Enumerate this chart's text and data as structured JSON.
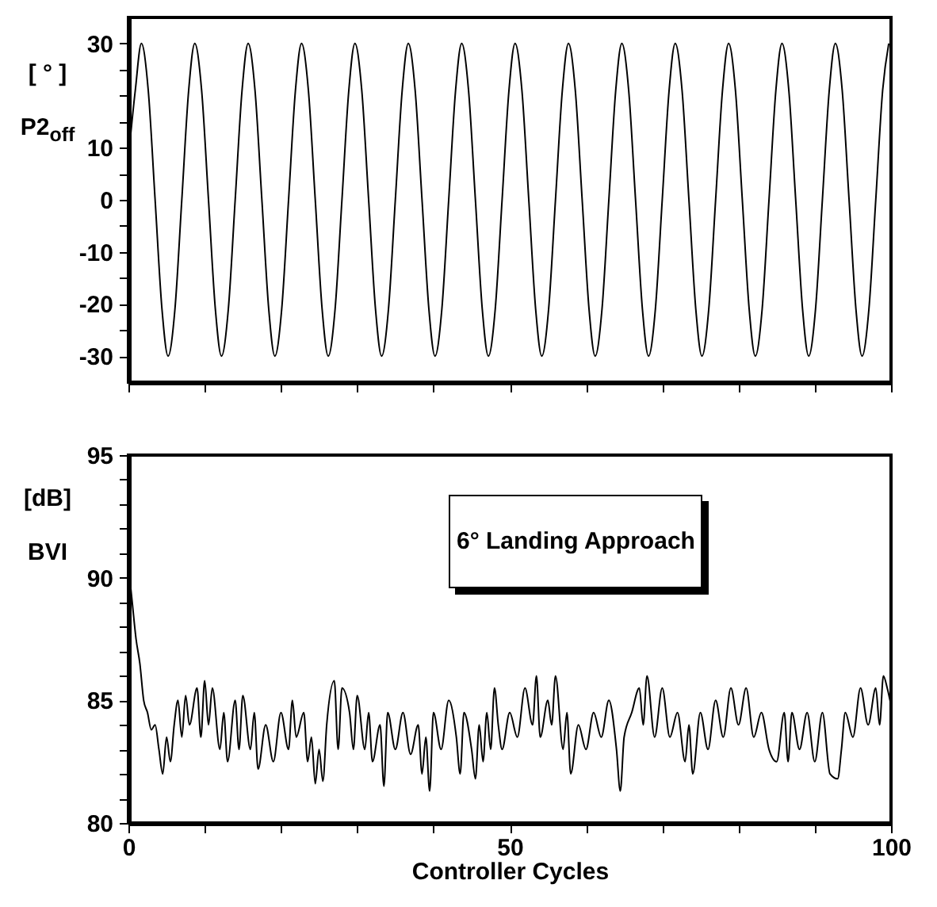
{
  "chart_data": [
    {
      "type": "line",
      "ylabel": "[ ° ] P2$_{off}$",
      "xlim": [
        0,
        100
      ],
      "ylim": [
        -35,
        35
      ],
      "tick_labels": "y",
      "grid": false,
      "marker": "none",
      "line_style": "solid",
      "xticks": [
        {
          "value": 0,
          "label": null
        },
        {
          "value": 10,
          "label": null
        },
        {
          "value": 20,
          "label": null
        },
        {
          "value": 30,
          "label": null
        },
        {
          "value": 40,
          "label": null
        },
        {
          "value": 50,
          "label": null
        },
        {
          "value": 60,
          "label": null
        },
        {
          "value": 70,
          "label": null
        },
        {
          "value": 80,
          "label": null
        },
        {
          "value": 90,
          "label": null
        },
        {
          "value": 100,
          "label": null
        }
      ],
      "yticks": [
        -30,
        {
          "value": -25,
          "label": null
        },
        -20,
        {
          "value": -15,
          "label": null
        },
        -10,
        {
          "value": -5,
          "label": null
        },
        0,
        {
          "value": 5,
          "label": null
        },
        10,
        {
          "value": 15,
          "label": null
        },
        {
          "value": 20,
          "label": null
        },
        {
          "value": 25,
          "label": null
        },
        30
      ],
      "x": [
        0,
        0.9,
        1.7,
        2.6,
        3.5,
        4.4,
        5.2,
        6.1,
        7.0,
        7.9,
        8.7,
        9.6,
        10.5,
        11.4,
        12.2,
        13.1,
        14.0,
        14.9,
        15.7,
        16.6,
        17.5,
        18.4,
        19.2,
        20.1,
        21.0,
        21.9,
        22.7,
        23.6,
        24.5,
        25.4,
        26.2,
        27.1,
        28.0,
        28.9,
        29.7,
        30.6,
        31.5,
        32.4,
        33.2,
        34.1,
        35.0,
        35.9,
        36.7,
        37.6,
        38.5,
        39.4,
        40.2,
        41.1,
        42.0,
        42.9,
        43.7,
        44.6,
        45.5,
        46.4,
        47.2,
        48.1,
        49.0,
        49.9,
        50.7,
        51.6,
        52.5,
        53.4,
        54.2,
        55.1,
        56.0,
        56.9,
        57.7,
        58.6,
        59.5,
        60.4,
        61.2,
        62.1,
        63.0,
        63.9,
        64.7,
        65.6,
        66.5,
        67.4,
        68.2,
        69.1,
        70.0,
        70.9,
        71.7,
        72.6,
        73.5,
        74.4,
        75.2,
        76.1,
        77.0,
        77.9,
        78.7,
        79.6,
        80.5,
        81.4,
        82.2,
        83.1,
        84.0,
        84.9,
        85.7,
        86.6,
        87.5,
        88.4,
        89.2,
        90.1,
        91.0,
        91.9,
        92.7,
        93.6,
        94.5,
        95.4,
        96.2,
        97.1,
        98.0,
        98.9,
        99.7
      ],
      "series": [
        {
          "color": "#000000",
          "values": [
            8,
            21,
            30,
            21,
            0,
            -21,
            -30,
            -21,
            0,
            21,
            30,
            21,
            0,
            -21,
            -30,
            -21,
            0,
            21,
            30,
            21,
            0,
            -21,
            -30,
            -21,
            0,
            21,
            30,
            21,
            0,
            -21,
            -30,
            -21,
            0,
            21,
            30,
            21,
            0,
            -21,
            -30,
            -21,
            0,
            21,
            30,
            21,
            0,
            -21,
            -30,
            -21,
            0,
            21,
            30,
            21,
            0,
            -21,
            -30,
            -21,
            0,
            21,
            30,
            21,
            0,
            -21,
            -30,
            -21,
            0,
            21,
            30,
            21,
            0,
            -21,
            -30,
            -21,
            0,
            21,
            30,
            21,
            0,
            -21,
            -30,
            -21,
            0,
            21,
            30,
            21,
            0,
            -21,
            -30,
            -21,
            0,
            21,
            30,
            21,
            0,
            -21,
            -30,
            -21,
            0,
            21,
            30,
            21,
            0,
            -21,
            -30,
            -21,
            0,
            21,
            30,
            21,
            0,
            -21,
            -30,
            -21,
            0,
            21,
            30
          ]
        }
      ]
    },
    {
      "type": "line",
      "xlabel": "Controller Cycles",
      "ylabel": "[dB] BVI",
      "xlim": [
        0,
        100
      ],
      "ylim": [
        80,
        95
      ],
      "grid": false,
      "marker": "none",
      "line_style": "solid",
      "annotations": [
        "6° Landing Approach"
      ],
      "xticks": [
        0,
        {
          "value": 10,
          "label": null
        },
        {
          "value": 20,
          "label": null
        },
        {
          "value": 30,
          "label": null
        },
        {
          "value": 40,
          "label": null
        },
        50,
        {
          "value": 60,
          "label": null
        },
        {
          "value": 70,
          "label": null
        },
        {
          "value": 80,
          "label": null
        },
        {
          "value": 90,
          "label": null
        },
        100
      ],
      "yticks": [
        80,
        {
          "value": 81,
          "label": null
        },
        {
          "value": 82,
          "label": null
        },
        {
          "value": 83,
          "label": null
        },
        {
          "value": 84,
          "label": null
        },
        85,
        {
          "value": 86,
          "label": null
        },
        {
          "value": 87,
          "label": null
        },
        {
          "value": 88,
          "label": null
        },
        {
          "value": 89,
          "label": null
        },
        90,
        {
          "value": 91,
          "label": null
        },
        {
          "value": 92,
          "label": null
        },
        {
          "value": 93,
          "label": null
        },
        {
          "value": 94,
          "label": null
        },
        95
      ],
      "x": [
        0,
        0.5,
        1,
        1.5,
        2,
        2.5,
        3,
        3.5,
        4,
        4.5,
        5,
        5.5,
        6,
        6.5,
        7,
        7.5,
        8,
        9,
        9.5,
        10,
        10.5,
        11,
        12,
        12.5,
        13,
        14,
        14.5,
        15,
        16,
        16.5,
        17,
        18,
        19,
        20,
        21,
        21.5,
        22,
        23,
        23.5,
        24,
        24.5,
        25,
        25.5,
        26,
        27,
        27.5,
        28,
        29,
        29.5,
        30,
        31,
        31.5,
        32,
        33,
        33.5,
        34,
        35,
        36,
        37,
        38,
        38.5,
        39,
        39.5,
        40,
        41,
        42,
        43,
        43.5,
        44,
        45,
        45.5,
        46,
        46.5,
        47,
        47.5,
        48,
        48.5,
        49,
        50,
        51,
        52,
        53,
        53.5,
        54,
        55,
        55.5,
        56,
        57,
        57.5,
        58,
        59,
        60,
        61,
        62,
        63,
        64,
        64.5,
        65,
        66,
        67,
        67.5,
        68,
        69,
        70,
        71,
        72,
        73,
        73.5,
        74,
        75,
        76,
        77,
        78,
        79,
        80,
        81,
        82,
        83,
        84,
        85,
        86,
        86.5,
        87,
        88,
        89,
        90,
        91,
        92,
        93,
        93.5,
        94,
        95,
        96,
        97,
        98,
        98.5,
        99,
        99.5,
        100
      ],
      "series": [
        {
          "color": "#000000",
          "values": [
            90.5,
            89,
            87.5,
            86.5,
            85,
            84.5,
            83.8,
            84,
            83,
            82,
            83.5,
            82.5,
            84,
            85,
            83.5,
            85.2,
            84,
            85.5,
            83.5,
            85.8,
            84,
            85.5,
            83,
            84.5,
            82.5,
            85,
            83,
            85.2,
            83,
            84.5,
            82.2,
            84,
            82.5,
            84.5,
            83,
            85,
            83.5,
            84.5,
            82.5,
            83.5,
            81.6,
            83,
            81.7,
            84,
            85.8,
            83,
            85.5,
            84.5,
            83,
            85.2,
            83,
            84.5,
            82.5,
            84,
            81.5,
            84.5,
            83,
            84.5,
            82.8,
            84,
            82,
            83.5,
            81.3,
            84.5,
            83,
            85,
            83.5,
            82,
            84.5,
            83,
            81.8,
            84,
            82.5,
            84.5,
            83,
            85.5,
            84,
            83,
            84.5,
            83.5,
            85.5,
            84,
            86,
            83.5,
            85,
            84,
            86,
            83,
            84.5,
            82,
            84,
            83,
            84.5,
            83.5,
            85,
            83,
            81.3,
            83.5,
            84.5,
            85.5,
            84,
            86,
            83.5,
            85.5,
            83.5,
            84.5,
            82.5,
            84,
            82,
            84.5,
            83,
            85,
            83.5,
            85.5,
            84,
            85.5,
            83.5,
            84.5,
            83,
            82.5,
            84.5,
            82.5,
            84.5,
            83,
            84.5,
            82.5,
            84.5,
            82,
            81.8,
            83,
            84.5,
            83.5,
            85.5,
            84,
            85.5,
            84,
            86,
            85.5,
            84.8
          ]
        }
      ]
    }
  ]
}
